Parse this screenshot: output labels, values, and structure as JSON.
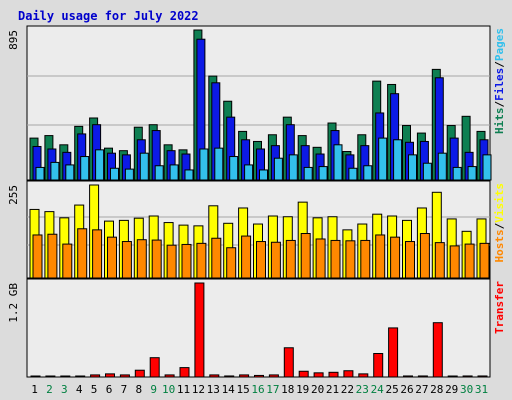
{
  "title": "Daily usage for July 2022",
  "colors": {
    "background": "#dcdcdc",
    "panel": "#ececec",
    "grid": "#a6a6a6",
    "title": "#0000cc",
    "hits": "#0e7f52",
    "files": "#0c1ae6",
    "pages": "#33c0ec",
    "visits": "#ffff00",
    "hosts": "#ff8800",
    "transfer": "#ff0000",
    "weekday_label": "#000000",
    "weekend_label": "#008040"
  },
  "chart_data": [
    {
      "type": "bar",
      "name": "hits-files-pages",
      "categories": [
        "1",
        "2",
        "3",
        "4",
        "5",
        "6",
        "7",
        "8",
        "9",
        "10",
        "11",
        "12",
        "13",
        "14",
        "15",
        "16",
        "17",
        "18",
        "19",
        "20",
        "21",
        "22",
        "23",
        "24",
        "25",
        "26",
        "27",
        "28",
        "29",
        "30",
        "31"
      ],
      "weekend_days": [
        2,
        3,
        9,
        10,
        16,
        17,
        23,
        24,
        30,
        31
      ],
      "ylabel_parts": [
        "Hits",
        "Files",
        "Pages"
      ],
      "y_tick_label": "895",
      "ylim": [
        0,
        895
      ],
      "series": [
        {
          "name": "Hits",
          "values": [
            250,
            265,
            210,
            320,
            370,
            190,
            175,
            315,
            330,
            210,
            180,
            895,
            620,
            470,
            290,
            230,
            270,
            375,
            265,
            195,
            340,
            170,
            270,
            590,
            570,
            325,
            280,
            660,
            325,
            380,
            290
          ]
        },
        {
          "name": "Files",
          "values": [
            200,
            185,
            165,
            275,
            330,
            160,
            150,
            240,
            295,
            175,
            155,
            840,
            580,
            375,
            240,
            185,
            205,
            330,
            205,
            155,
            295,
            150,
            205,
            400,
            515,
            225,
            230,
            610,
            250,
            165,
            240
          ]
        },
        {
          "name": "Pages",
          "values": [
            75,
            105,
            90,
            140,
            180,
            70,
            65,
            160,
            85,
            90,
            60,
            185,
            190,
            140,
            90,
            60,
            130,
            150,
            75,
            80,
            210,
            70,
            85,
            250,
            240,
            150,
            100,
            160,
            75,
            80,
            150
          ]
        }
      ]
    },
    {
      "type": "bar",
      "name": "visits-hosts",
      "categories": [
        "1",
        "2",
        "3",
        "4",
        "5",
        "6",
        "7",
        "8",
        "9",
        "10",
        "11",
        "12",
        "13",
        "14",
        "15",
        "16",
        "17",
        "18",
        "19",
        "20",
        "21",
        "22",
        "23",
        "24",
        "25",
        "26",
        "27",
        "28",
        "29",
        "30",
        "31"
      ],
      "ylabel_parts": [
        "Hosts",
        "Visits"
      ],
      "y_tick_label": "255",
      "ylim": [
        0,
        255
      ],
      "series": [
        {
          "name": "Visits",
          "values": [
            188,
            182,
            165,
            200,
            255,
            156,
            158,
            164,
            170,
            152,
            145,
            143,
            198,
            150,
            192,
            148,
            170,
            168,
            208,
            165,
            168,
            132,
            148,
            175,
            170,
            158,
            192,
            235,
            162,
            128,
            162
          ]
        },
        {
          "name": "Hosts",
          "values": [
            118,
            120,
            93,
            135,
            132,
            112,
            100,
            105,
            104,
            90,
            92,
            95,
            109,
            83,
            115,
            100,
            98,
            103,
            122,
            107,
            103,
            102,
            103,
            118,
            112,
            100,
            122,
            97,
            88,
            93,
            95
          ]
        }
      ]
    },
    {
      "type": "bar",
      "name": "transfer",
      "categories": [
        "1",
        "2",
        "3",
        "4",
        "5",
        "6",
        "7",
        "8",
        "9",
        "10",
        "11",
        "12",
        "13",
        "14",
        "15",
        "16",
        "17",
        "18",
        "19",
        "20",
        "21",
        "22",
        "23",
        "24",
        "25",
        "26",
        "27",
        "28",
        "29",
        "30",
        "31"
      ],
      "ylabel_parts": [
        "Transfer"
      ],
      "y_tick_label": "1.2 GB",
      "ylim": [
        0,
        1.8
      ],
      "series": [
        {
          "name": "Transfer",
          "values": [
            0.012,
            0.012,
            0.012,
            0.012,
            0.04,
            0.06,
            0.04,
            0.13,
            0.37,
            0.04,
            0.18,
            1.8,
            0.04,
            0.02,
            0.04,
            0.03,
            0.04,
            0.56,
            0.11,
            0.08,
            0.09,
            0.12,
            0.06,
            0.45,
            0.94,
            0.02,
            0.02,
            1.04,
            0.01,
            0.02,
            0.02
          ]
        }
      ]
    }
  ]
}
